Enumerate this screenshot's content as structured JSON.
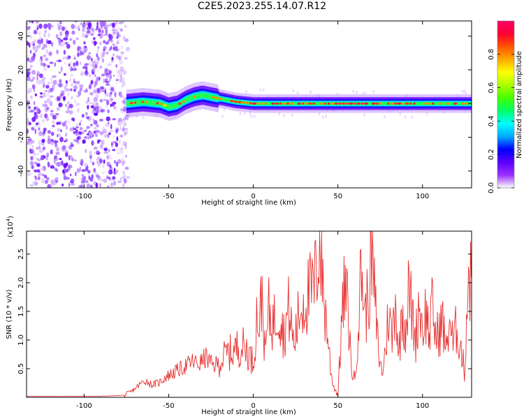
{
  "title": "C2E5.2023.255.14.07.R12",
  "chart_data": [
    {
      "type": "heatmap",
      "xlabel": "Height of straight line (km)",
      "ylabel": "Frequency (Hz)",
      "xlim": [
        -134,
        129
      ],
      "ylim": [
        -50,
        49
      ],
      "x_ticks": [
        -100,
        -50,
        0,
        50,
        100
      ],
      "y_ticks": [
        -40,
        -20,
        0,
        20,
        40
      ],
      "ridge": [
        {
          "x": -75,
          "y": 0
        },
        {
          "x": -65,
          "y": 1
        },
        {
          "x": -55,
          "y": 0
        },
        {
          "x": -50,
          "y": -2
        },
        {
          "x": -45,
          "y": -1
        },
        {
          "x": -40,
          "y": 2
        },
        {
          "x": -35,
          "y": 4
        },
        {
          "x": -30,
          "y": 5
        },
        {
          "x": -25,
          "y": 4
        },
        {
          "x": -20,
          "y": 3
        },
        {
          "x": -10,
          "y": 1
        },
        {
          "x": 0,
          "y": 0
        },
        {
          "x": 50,
          "y": 0
        },
        {
          "x": 129,
          "y": 0
        }
      ],
      "noise_region_x": [
        -134,
        -74
      ],
      "colorbar": {
        "label": "Normalized spectral amplitude",
        "range": [
          0,
          1
        ],
        "ticks": [
          "0.0",
          "0.2",
          "0.4",
          "0.6",
          "0.8"
        ],
        "colors": [
          "#ffffff",
          "#9b30ff",
          "#5a00ff",
          "#0000ff",
          "#00aaff",
          "#00ffff",
          "#00ff66",
          "#44ff00",
          "#aaff00",
          "#ffff00",
          "#ffaa00",
          "#ff5500",
          "#ff0033",
          "#ff0066"
        ]
      }
    },
    {
      "type": "line",
      "xlabel": "Height of straight line (km)",
      "ylabel": "SNR (10 * v/v)",
      "multiplier": "(x10",
      "multiplier_exp": "4",
      "multiplier_close": ")",
      "xlim": [
        -134,
        129
      ],
      "ylim": [
        0,
        2.9
      ],
      "x_ticks": [
        -100,
        -50,
        0,
        50,
        100
      ],
      "y_ticks": [
        "0.5",
        "1.0",
        "1.5",
        "2.0",
        "2.5"
      ],
      "color": "#e83030",
      "series": [
        {
          "values": [
            [
              -134,
              0.02
            ],
            [
              -110,
              0.02
            ],
            [
              -90,
              0.02
            ],
            [
              -80,
              0.03
            ],
            [
              -76,
              0.04
            ],
            [
              -72,
              0.1
            ],
            [
              -68,
              0.2
            ],
            [
              -64,
              0.3
            ],
            [
              -60,
              0.22
            ],
            [
              -56,
              0.25
            ],
            [
              -52,
              0.35
            ],
            [
              -48,
              0.42
            ],
            [
              -44,
              0.48
            ],
            [
              -40,
              0.55
            ],
            [
              -36,
              0.62
            ],
            [
              -32,
              0.58
            ],
            [
              -28,
              0.7
            ],
            [
              -24,
              0.55
            ],
            [
              -20,
              0.6
            ],
            [
              -16,
              0.75
            ],
            [
              -12,
              0.8
            ],
            [
              -8,
              0.9
            ],
            [
              -4,
              0.85
            ],
            [
              0,
              0.6
            ],
            [
              2,
              1.4
            ],
            [
              4,
              1.3
            ],
            [
              5,
              1.95
            ],
            [
              7,
              0.7
            ],
            [
              9,
              1.5
            ],
            [
              12,
              1.3
            ],
            [
              15,
              1.6
            ],
            [
              18,
              1.1
            ],
            [
              21,
              1.55
            ],
            [
              24,
              0.9
            ],
            [
              27,
              1.45
            ],
            [
              30,
              1.7
            ],
            [
              33,
              1.8
            ],
            [
              36,
              1.9
            ],
            [
              38,
              2.4
            ],
            [
              39,
              2.9
            ],
            [
              40,
              2.5
            ],
            [
              42,
              1.6
            ],
            [
              44,
              1.1
            ],
            [
              46,
              0.4
            ],
            [
              48,
              0.15
            ],
            [
              50,
              0.05
            ],
            [
              52,
              1.2
            ],
            [
              54,
              1.9
            ],
            [
              56,
              1.5
            ],
            [
              58,
              0.5
            ],
            [
              60,
              0.3
            ],
            [
              62,
              1.3
            ],
            [
              64,
              2.3
            ],
            [
              66,
              1.4
            ],
            [
              68,
              1.8
            ],
            [
              70,
              2.6
            ],
            [
              72,
              1.6
            ],
            [
              74,
              0.8
            ],
            [
              76,
              0.4
            ],
            [
              78,
              0.8
            ],
            [
              80,
              1.5
            ],
            [
              82,
              1.0
            ],
            [
              84,
              1.8
            ],
            [
              86,
              0.7
            ],
            [
              88,
              1.6
            ],
            [
              90,
              1.2
            ],
            [
              92,
              1.9
            ],
            [
              94,
              1.4
            ],
            [
              96,
              1.0
            ],
            [
              98,
              1.7
            ],
            [
              100,
              1.2
            ],
            [
              102,
              1.5
            ],
            [
              104,
              1.1
            ],
            [
              106,
              1.6
            ],
            [
              108,
              1.0
            ],
            [
              110,
              1.2
            ],
            [
              112,
              1.3
            ],
            [
              114,
              0.8
            ],
            [
              116,
              1.4
            ],
            [
              118,
              0.9
            ],
            [
              120,
              1.2
            ],
            [
              122,
              1.0
            ],
            [
              124,
              0.6
            ],
            [
              125,
              0.4
            ],
            [
              126,
              1.4
            ],
            [
              127,
              2.2
            ],
            [
              128,
              2.1
            ],
            [
              129,
              1.9
            ]
          ]
        }
      ]
    }
  ]
}
